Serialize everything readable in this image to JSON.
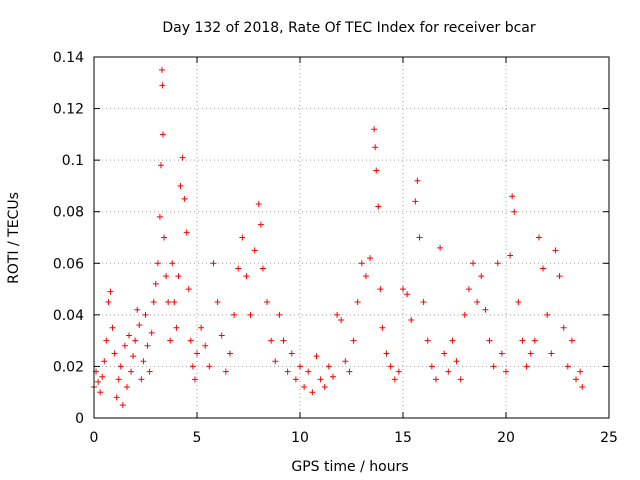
{
  "chart_data": {
    "type": "scatter",
    "title": "Day 132 of 2018, Rate Of TEC Index for receiver bcar",
    "xlabel": "GPS time / hours",
    "ylabel": "ROTI / TECUs",
    "xlim": [
      0,
      25
    ],
    "ylim": [
      0,
      0.14
    ],
    "xticks": [
      0,
      5,
      10,
      15,
      20,
      25
    ],
    "xtick_labels": [
      "0",
      "5",
      "10",
      "15",
      "20",
      "25"
    ],
    "yticks": [
      0,
      0.02,
      0.04,
      0.06,
      0.08,
      0.1,
      0.12,
      0.14
    ],
    "ytick_labels": [
      "0",
      "0.02",
      "0.04",
      "0.06",
      "0.08",
      "0.1",
      "0.12",
      "0.14"
    ],
    "grid": true,
    "marker": "+",
    "color": "#ff0000",
    "series": [
      {
        "name": "ROTI",
        "points": [
          [
            0.0,
            0.012
          ],
          [
            0.1,
            0.018
          ],
          [
            0.2,
            0.014
          ],
          [
            0.3,
            0.01
          ],
          [
            0.4,
            0.016
          ],
          [
            0.5,
            0.022
          ],
          [
            0.6,
            0.03
          ],
          [
            0.7,
            0.045
          ],
          [
            0.8,
            0.049
          ],
          [
            0.9,
            0.035
          ],
          [
            1.0,
            0.025
          ],
          [
            1.1,
            0.008
          ],
          [
            1.2,
            0.015
          ],
          [
            1.3,
            0.02
          ],
          [
            1.4,
            0.005
          ],
          [
            1.5,
            0.028
          ],
          [
            1.6,
            0.012
          ],
          [
            1.7,
            0.032
          ],
          [
            1.8,
            0.018
          ],
          [
            1.9,
            0.024
          ],
          [
            2.0,
            0.03
          ],
          [
            2.1,
            0.042
          ],
          [
            2.2,
            0.036
          ],
          [
            2.3,
            0.015
          ],
          [
            2.4,
            0.022
          ],
          [
            2.5,
            0.04
          ],
          [
            2.6,
            0.028
          ],
          [
            2.7,
            0.018
          ],
          [
            2.8,
            0.033
          ],
          [
            2.9,
            0.045
          ],
          [
            3.0,
            0.052
          ],
          [
            3.1,
            0.06
          ],
          [
            3.2,
            0.078
          ],
          [
            3.25,
            0.098
          ],
          [
            3.3,
            0.135
          ],
          [
            3.32,
            0.129
          ],
          [
            3.35,
            0.11
          ],
          [
            3.4,
            0.07
          ],
          [
            3.5,
            0.055
          ],
          [
            3.6,
            0.045
          ],
          [
            3.7,
            0.03
          ],
          [
            3.8,
            0.06
          ],
          [
            3.9,
            0.045
          ],
          [
            4.0,
            0.035
          ],
          [
            4.1,
            0.055
          ],
          [
            4.2,
            0.09
          ],
          [
            4.3,
            0.101
          ],
          [
            4.4,
            0.085
          ],
          [
            4.5,
            0.072
          ],
          [
            4.6,
            0.05
          ],
          [
            4.7,
            0.03
          ],
          [
            4.8,
            0.02
          ],
          [
            4.9,
            0.015
          ],
          [
            5.0,
            0.025
          ],
          [
            5.2,
            0.035
          ],
          [
            5.4,
            0.028
          ],
          [
            5.6,
            0.02
          ],
          [
            5.8,
            0.06
          ],
          [
            6.0,
            0.045
          ],
          [
            6.2,
            0.032
          ],
          [
            6.4,
            0.018
          ],
          [
            6.6,
            0.025
          ],
          [
            6.8,
            0.04
          ],
          [
            7.0,
            0.058
          ],
          [
            7.2,
            0.07
          ],
          [
            7.4,
            0.055
          ],
          [
            7.6,
            0.04
          ],
          [
            7.8,
            0.065
          ],
          [
            8.0,
            0.083
          ],
          [
            8.1,
            0.075
          ],
          [
            8.2,
            0.058
          ],
          [
            8.4,
            0.045
          ],
          [
            8.6,
            0.03
          ],
          [
            8.8,
            0.022
          ],
          [
            9.0,
            0.04
          ],
          [
            9.2,
            0.03
          ],
          [
            9.4,
            0.018
          ],
          [
            9.6,
            0.025
          ],
          [
            9.8,
            0.015
          ],
          [
            10.0,
            0.02
          ],
          [
            10.2,
            0.012
          ],
          [
            10.4,
            0.018
          ],
          [
            10.6,
            0.01
          ],
          [
            10.8,
            0.024
          ],
          [
            11.0,
            0.015
          ],
          [
            11.2,
            0.012
          ],
          [
            11.4,
            0.02
          ],
          [
            11.6,
            0.016
          ],
          [
            11.8,
            0.04
          ],
          [
            12.0,
            0.038
          ],
          [
            12.2,
            0.022
          ],
          [
            12.4,
            0.018
          ],
          [
            12.6,
            0.03
          ],
          [
            12.8,
            0.045
          ],
          [
            13.0,
            0.06
          ],
          [
            13.2,
            0.055
          ],
          [
            13.4,
            0.062
          ],
          [
            13.6,
            0.112
          ],
          [
            13.65,
            0.105
          ],
          [
            13.7,
            0.096
          ],
          [
            13.8,
            0.082
          ],
          [
            13.9,
            0.05
          ],
          [
            14.0,
            0.035
          ],
          [
            14.2,
            0.025
          ],
          [
            14.4,
            0.02
          ],
          [
            14.6,
            0.015
          ],
          [
            14.8,
            0.018
          ],
          [
            15.0,
            0.05
          ],
          [
            15.2,
            0.048
          ],
          [
            15.4,
            0.038
          ],
          [
            15.6,
            0.084
          ],
          [
            15.7,
            0.092
          ],
          [
            15.8,
            0.07
          ],
          [
            16.0,
            0.045
          ],
          [
            16.2,
            0.03
          ],
          [
            16.4,
            0.02
          ],
          [
            16.6,
            0.015
          ],
          [
            16.8,
            0.066
          ],
          [
            17.0,
            0.025
          ],
          [
            17.2,
            0.018
          ],
          [
            17.4,
            0.03
          ],
          [
            17.6,
            0.022
          ],
          [
            17.8,
            0.015
          ],
          [
            18.0,
            0.04
          ],
          [
            18.2,
            0.05
          ],
          [
            18.4,
            0.06
          ],
          [
            18.6,
            0.045
          ],
          [
            18.8,
            0.055
          ],
          [
            19.0,
            0.042
          ],
          [
            19.2,
            0.03
          ],
          [
            19.4,
            0.02
          ],
          [
            19.6,
            0.06
          ],
          [
            19.8,
            0.025
          ],
          [
            20.0,
            0.018
          ],
          [
            20.2,
            0.063
          ],
          [
            20.3,
            0.086
          ],
          [
            20.4,
            0.08
          ],
          [
            20.6,
            0.045
          ],
          [
            20.8,
            0.03
          ],
          [
            21.0,
            0.02
          ],
          [
            21.2,
            0.025
          ],
          [
            21.4,
            0.03
          ],
          [
            21.6,
            0.07
          ],
          [
            21.8,
            0.058
          ],
          [
            22.0,
            0.04
          ],
          [
            22.2,
            0.025
          ],
          [
            22.4,
            0.065
          ],
          [
            22.6,
            0.055
          ],
          [
            22.8,
            0.035
          ],
          [
            23.0,
            0.02
          ],
          [
            23.2,
            0.03
          ],
          [
            23.4,
            0.015
          ],
          [
            23.6,
            0.018
          ],
          [
            23.7,
            0.012
          ]
        ]
      }
    ]
  }
}
